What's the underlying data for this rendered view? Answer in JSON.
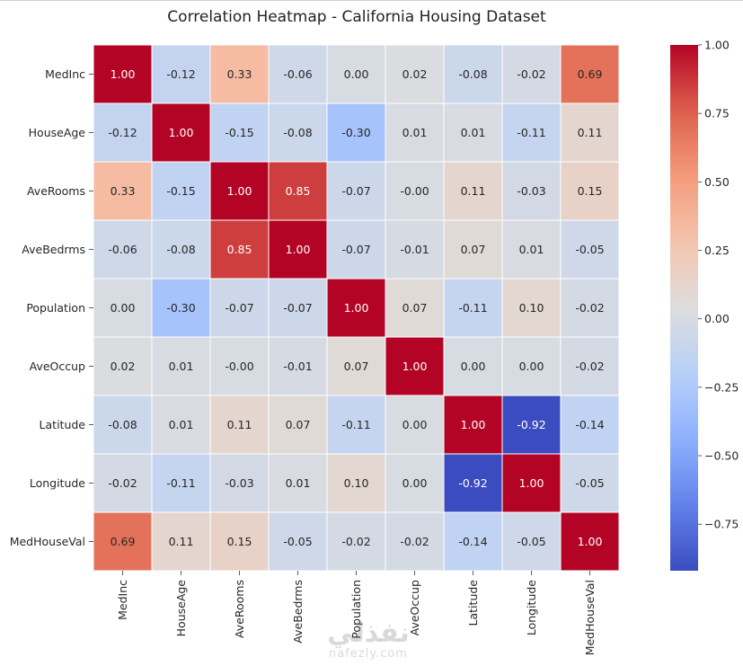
{
  "chart_data": {
    "type": "heatmap",
    "title": "Correlation Heatmap - California Housing Dataset",
    "row_labels": [
      "MedInc",
      "HouseAge",
      "AveRooms",
      "AveBedrms",
      "Population",
      "AveOccup",
      "Latitude",
      "Longitude",
      "MedHouseVal"
    ],
    "col_labels": [
      "MedInc",
      "HouseAge",
      "AveRooms",
      "AveBedrms",
      "Population",
      "AveOccup",
      "Latitude",
      "Longitude",
      "MedHouseVal"
    ],
    "values": [
      [
        1.0,
        -0.12,
        0.33,
        -0.06,
        0.0,
        0.02,
        -0.08,
        -0.02,
        0.69
      ],
      [
        -0.12,
        1.0,
        -0.15,
        -0.08,
        -0.3,
        0.01,
        0.01,
        -0.11,
        0.11
      ],
      [
        0.33,
        -0.15,
        1.0,
        0.85,
        -0.07,
        -0.0,
        0.11,
        -0.03,
        0.15
      ],
      [
        -0.06,
        -0.08,
        0.85,
        1.0,
        -0.07,
        -0.01,
        0.07,
        0.01,
        -0.05
      ],
      [
        0.0,
        -0.3,
        -0.07,
        -0.07,
        1.0,
        0.07,
        -0.11,
        0.1,
        -0.02
      ],
      [
        0.02,
        0.01,
        -0.0,
        -0.01,
        0.07,
        1.0,
        0.0,
        0.0,
        -0.02
      ],
      [
        -0.08,
        0.01,
        0.11,
        0.07,
        -0.11,
        0.0,
        1.0,
        -0.92,
        -0.14
      ],
      [
        -0.02,
        -0.11,
        -0.03,
        0.01,
        0.1,
        0.0,
        -0.92,
        1.0,
        -0.05
      ],
      [
        0.69,
        0.11,
        0.15,
        -0.05,
        -0.02,
        -0.02,
        -0.14,
        -0.05,
        1.0
      ]
    ],
    "cell_labels": [
      [
        "1.00",
        "-0.12",
        "0.33",
        "-0.06",
        "0.00",
        "0.02",
        "-0.08",
        "-0.02",
        "0.69"
      ],
      [
        "-0.12",
        "1.00",
        "-0.15",
        "-0.08",
        "-0.30",
        "0.01",
        "0.01",
        "-0.11",
        "0.11"
      ],
      [
        "0.33",
        "-0.15",
        "1.00",
        "0.85",
        "-0.07",
        "-0.00",
        "0.11",
        "-0.03",
        "0.15"
      ],
      [
        "-0.06",
        "-0.08",
        "0.85",
        "1.00",
        "-0.07",
        "-0.01",
        "0.07",
        "0.01",
        "-0.05"
      ],
      [
        "0.00",
        "-0.30",
        "-0.07",
        "-0.07",
        "1.00",
        "0.07",
        "-0.11",
        "0.10",
        "-0.02"
      ],
      [
        "0.02",
        "0.01",
        "-0.00",
        "-0.01",
        "0.07",
        "1.00",
        "0.00",
        "0.00",
        "-0.02"
      ],
      [
        "-0.08",
        "0.01",
        "0.11",
        "0.07",
        "-0.11",
        "0.00",
        "1.00",
        "-0.92",
        "-0.14"
      ],
      [
        "-0.02",
        "-0.11",
        "-0.03",
        "0.01",
        "0.10",
        "0.00",
        "-0.92",
        "1.00",
        "-0.05"
      ],
      [
        "0.69",
        "0.11",
        "0.15",
        "-0.05",
        "-0.02",
        "-0.02",
        "-0.14",
        "-0.05",
        "1.00"
      ]
    ],
    "colormap": "coolwarm",
    "color_range": [
      -0.92,
      1.0
    ],
    "colorbar": {
      "position": "right",
      "ticks": [
        1.0,
        0.75,
        0.5,
        0.25,
        0.0,
        -0.25,
        -0.5,
        -0.75
      ],
      "tick_labels": [
        "1.00",
        "0.75",
        "0.50",
        "0.25",
        "0.00",
        "−0.25",
        "−0.50",
        "−0.75"
      ]
    },
    "cell_border_color": "#ffffff",
    "grid": false
  },
  "watermark": {
    "logo_text": "نفذلي",
    "url_text": "nafezly.com"
  }
}
